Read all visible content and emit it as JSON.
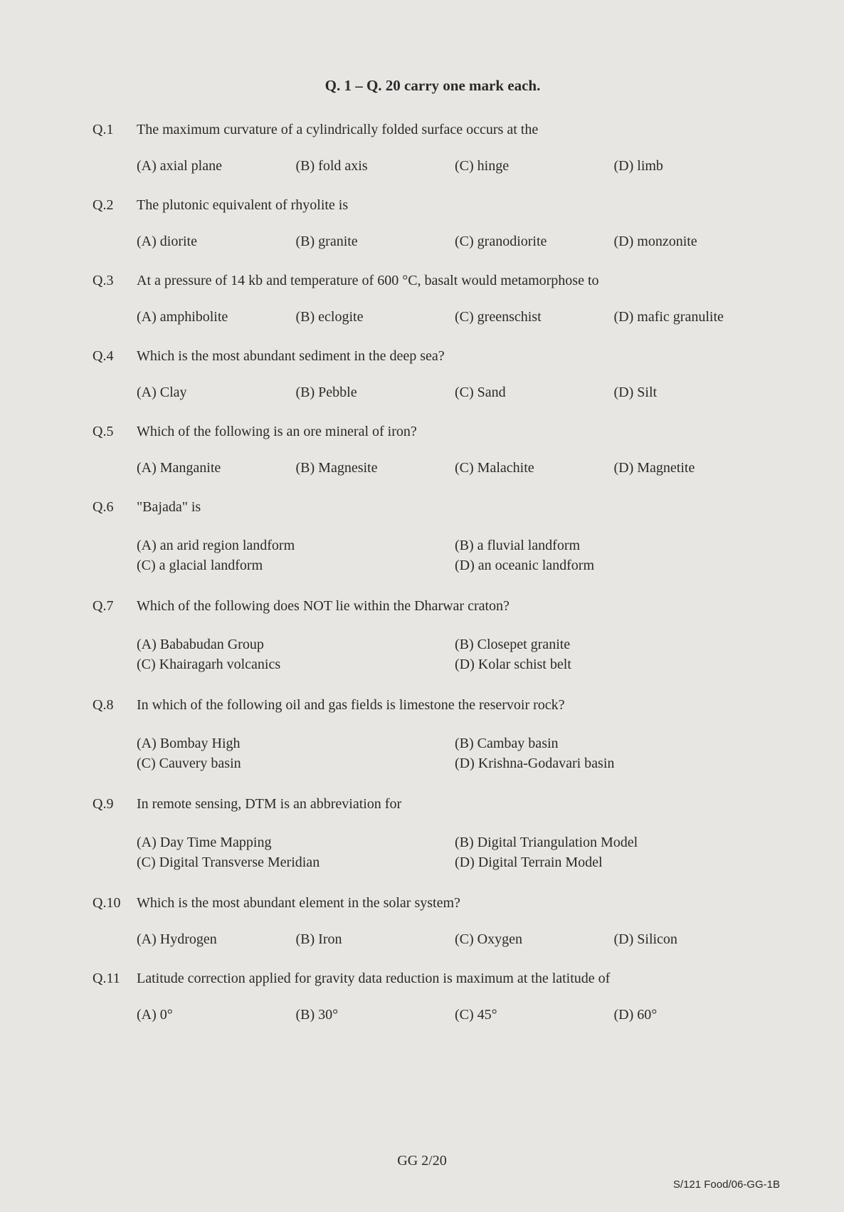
{
  "section_header": "Q. 1 – Q. 20 carry one mark each.",
  "questions": [
    {
      "number": "Q.1",
      "text": "The maximum curvature of a cylindrically folded surface occurs at the",
      "layout": "4col",
      "options": [
        "(A) axial plane",
        "(B) fold axis",
        "(C)  hinge",
        "(D) limb"
      ]
    },
    {
      "number": "Q.2",
      "text": "The plutonic equivalent of rhyolite is",
      "layout": "4col",
      "options": [
        "(A) diorite",
        "(B) granite",
        "(C) granodiorite",
        "(D) monzonite"
      ]
    },
    {
      "number": "Q.3",
      "text": "At a pressure of 14 kb and temperature of 600 °C, basalt would metamorphose to",
      "layout": "4col",
      "options": [
        "(A) amphibolite",
        "(B) eclogite",
        "(C) greenschist",
        "(D) mafic granulite"
      ]
    },
    {
      "number": "Q.4",
      "text": "Which is the most abundant sediment in the deep sea?",
      "layout": "4col",
      "options": [
        "(A) Clay",
        "(B) Pebble",
        "(C) Sand",
        "(D) Silt"
      ]
    },
    {
      "number": "Q.5",
      "text": "Which of the following is an ore mineral of iron?",
      "layout": "4col",
      "options": [
        "(A) Manganite",
        "(B) Magnesite",
        "(C) Malachite",
        "(D) Magnetite"
      ]
    },
    {
      "number": "Q.6",
      "text": "\"Bajada\" is",
      "layout": "2col",
      "options": [
        "(A) an arid region landform",
        "(B) a fluvial landform",
        "(C) a glacial landform",
        "(D) an oceanic landform"
      ]
    },
    {
      "number": "Q.7",
      "text": "Which of the following does NOT lie within the Dharwar craton?",
      "layout": "2col",
      "options": [
        "(A) Bababudan Group",
        "(B) Closepet granite",
        "(C) Khairagarh volcanics",
        "(D) Kolar schist belt"
      ]
    },
    {
      "number": "Q.8",
      "text": "In which of the following oil and gas fields is limestone the reservoir rock?",
      "layout": "2col",
      "options": [
        "(A) Bombay High",
        "(B) Cambay basin",
        "(C) Cauvery basin",
        "(D) Krishna-Godavari basin"
      ]
    },
    {
      "number": "Q.9",
      "text": "In remote sensing, DTM is an abbreviation for",
      "layout": "2col",
      "options": [
        "(A) Day Time Mapping",
        "(B) Digital Triangulation Model",
        "(C) Digital Transverse Meridian",
        "(D) Digital Terrain Model"
      ]
    },
    {
      "number": "Q.10",
      "text": "Which is the most abundant element in the solar system?",
      "layout": "4col",
      "options": [
        "(A) Hydrogen",
        "(B) Iron",
        "(C) Oxygen",
        "(D) Silicon"
      ]
    },
    {
      "number": "Q.11",
      "text": "Latitude correction applied for gravity data reduction is  maximum  at  the  latitude of",
      "layout": "4col",
      "options": [
        "(A) 0°",
        "(B) 30°",
        "(C) 45°",
        "(D) 60°"
      ]
    }
  ],
  "footer_center": "GG 2/20",
  "footer_right": "S/121 Food/06-GG-1B"
}
